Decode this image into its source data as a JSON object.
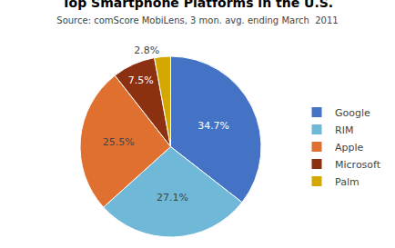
{
  "chart_data": {
    "type": "pie",
    "title": "Top Smartphone Platforms in the U.S.",
    "subtitle": "Source: comScore MobiLens, 3 mon. avg. ending March  2011",
    "categories": [
      "Google",
      "RIM",
      "Apple",
      "Microsoft",
      "Palm"
    ],
    "values": [
      34.7,
      27.1,
      25.5,
      7.5,
      2.8
    ],
    "value_labels": [
      "34.7%",
      "27.1%",
      "25.5%",
      "7.5%",
      "2.8%"
    ],
    "colors": [
      "#4472C4",
      "#70B8D8",
      "#E07030",
      "#8B3010",
      "#D4A800"
    ],
    "data_labels": true,
    "legend": "right"
  }
}
